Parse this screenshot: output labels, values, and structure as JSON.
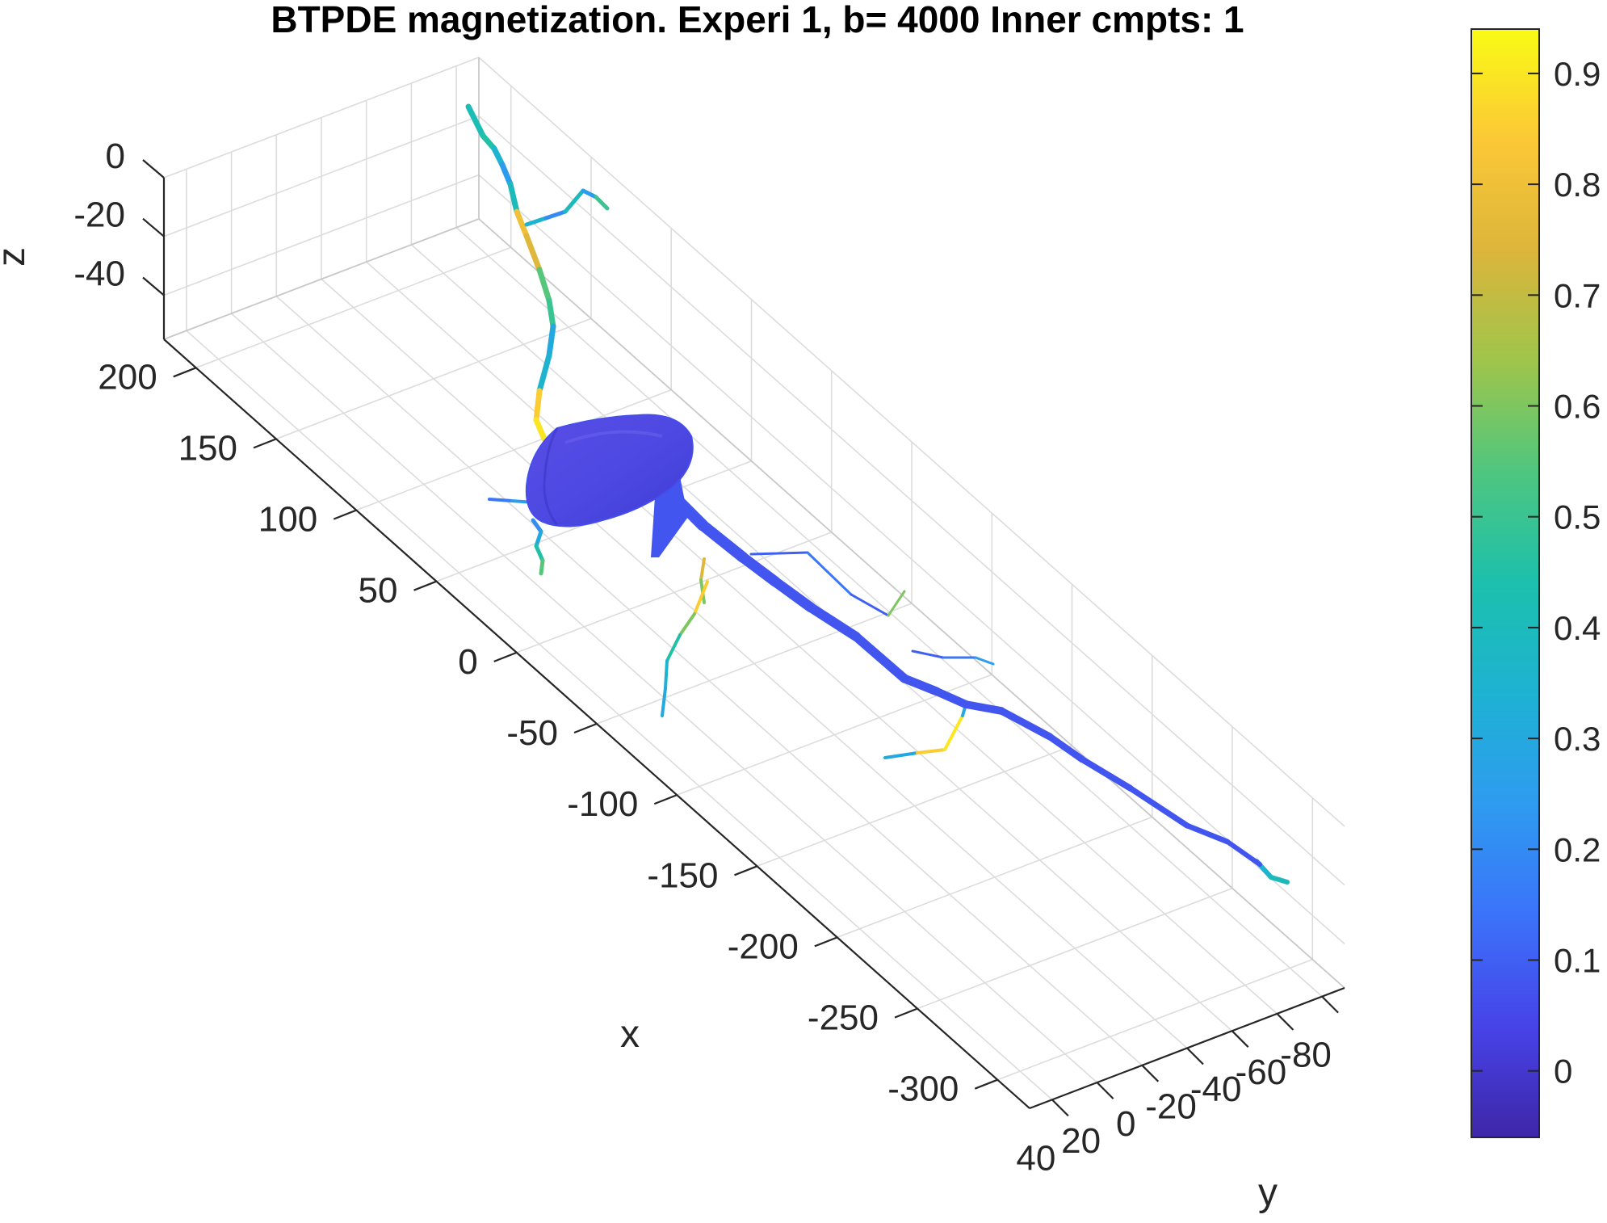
{
  "chart_data": {
    "type": "3d-surface",
    "title": "BTPDE magnetization. Experi 1, b= 4000 Inner cmpts: 1",
    "xlabel": "x",
    "ylabel": "y",
    "zlabel": "z",
    "x_ticks": [
      "200",
      "150",
      "100",
      "50",
      "0",
      "-50",
      "-100",
      "-150",
      "-200",
      "-250",
      "-300"
    ],
    "y_ticks": [
      "40",
      "20",
      "0",
      "-20",
      "-40",
      "-60",
      "-80"
    ],
    "z_ticks": [
      "0",
      "-20",
      "-40"
    ],
    "xlim": [
      -320,
      220
    ],
    "ylim": [
      -90,
      50
    ],
    "zlim": [
      -55,
      0
    ],
    "grid": true,
    "colorbar": {
      "ticks": [
        "0",
        "0.1",
        "0.2",
        "0.3",
        "0.4",
        "0.5",
        "0.6",
        "0.7",
        "0.8",
        "0.9"
      ],
      "range": [
        -0.06,
        0.94
      ],
      "colormap": "parula",
      "colors": [
        "#3e26a8",
        "#4743e8",
        "#3b73fa",
        "#2e9bf0",
        "#1eb2d3",
        "#1cc0ad",
        "#4ec67f",
        "#9fc54b",
        "#dcb53b",
        "#fcc836",
        "#f9fb15"
      ],
      "placement": "right"
    },
    "series": [
      {
        "part": "soma",
        "value": 0.06
      },
      {
        "part": "main-dendrite",
        "value": 0.08
      },
      {
        "part": "top-dendrite",
        "values": [
          0.42,
          0.45,
          0.35,
          0.25,
          0.4,
          0.8,
          0.75,
          0.55,
          0.5,
          0.3,
          0.35,
          0.85,
          0.9,
          0.6,
          0.5
        ]
      },
      {
        "part": "top-side-branch",
        "values": [
          0.35,
          0.2,
          0.4,
          0.25,
          0.5
        ]
      },
      {
        "part": "left-lower-branch",
        "values": [
          0.2,
          0.3,
          0.45,
          0.55,
          0.8
        ]
      },
      {
        "part": "left-upper-branch",
        "values": [
          0.15,
          0.25,
          0.2
        ]
      },
      {
        "part": "mid-branch-1",
        "values": [
          0.75,
          0.6,
          0.65
        ]
      },
      {
        "part": "mid-branch-2",
        "values": [
          0.85,
          0.6,
          0.45,
          0.35,
          0.3
        ]
      },
      {
        "part": "right-branch-1",
        "values": [
          0.1,
          0.15,
          0.1,
          0.6
        ]
      },
      {
        "part": "right-branch-2",
        "values": [
          0.1,
          0.15,
          0.25
        ]
      },
      {
        "part": "lower-branch",
        "values": [
          0.3,
          0.85,
          0.9,
          0.3,
          0.25
        ]
      },
      {
        "part": "tip",
        "values": [
          0.35,
          0.4,
          0.5
        ]
      }
    ]
  }
}
